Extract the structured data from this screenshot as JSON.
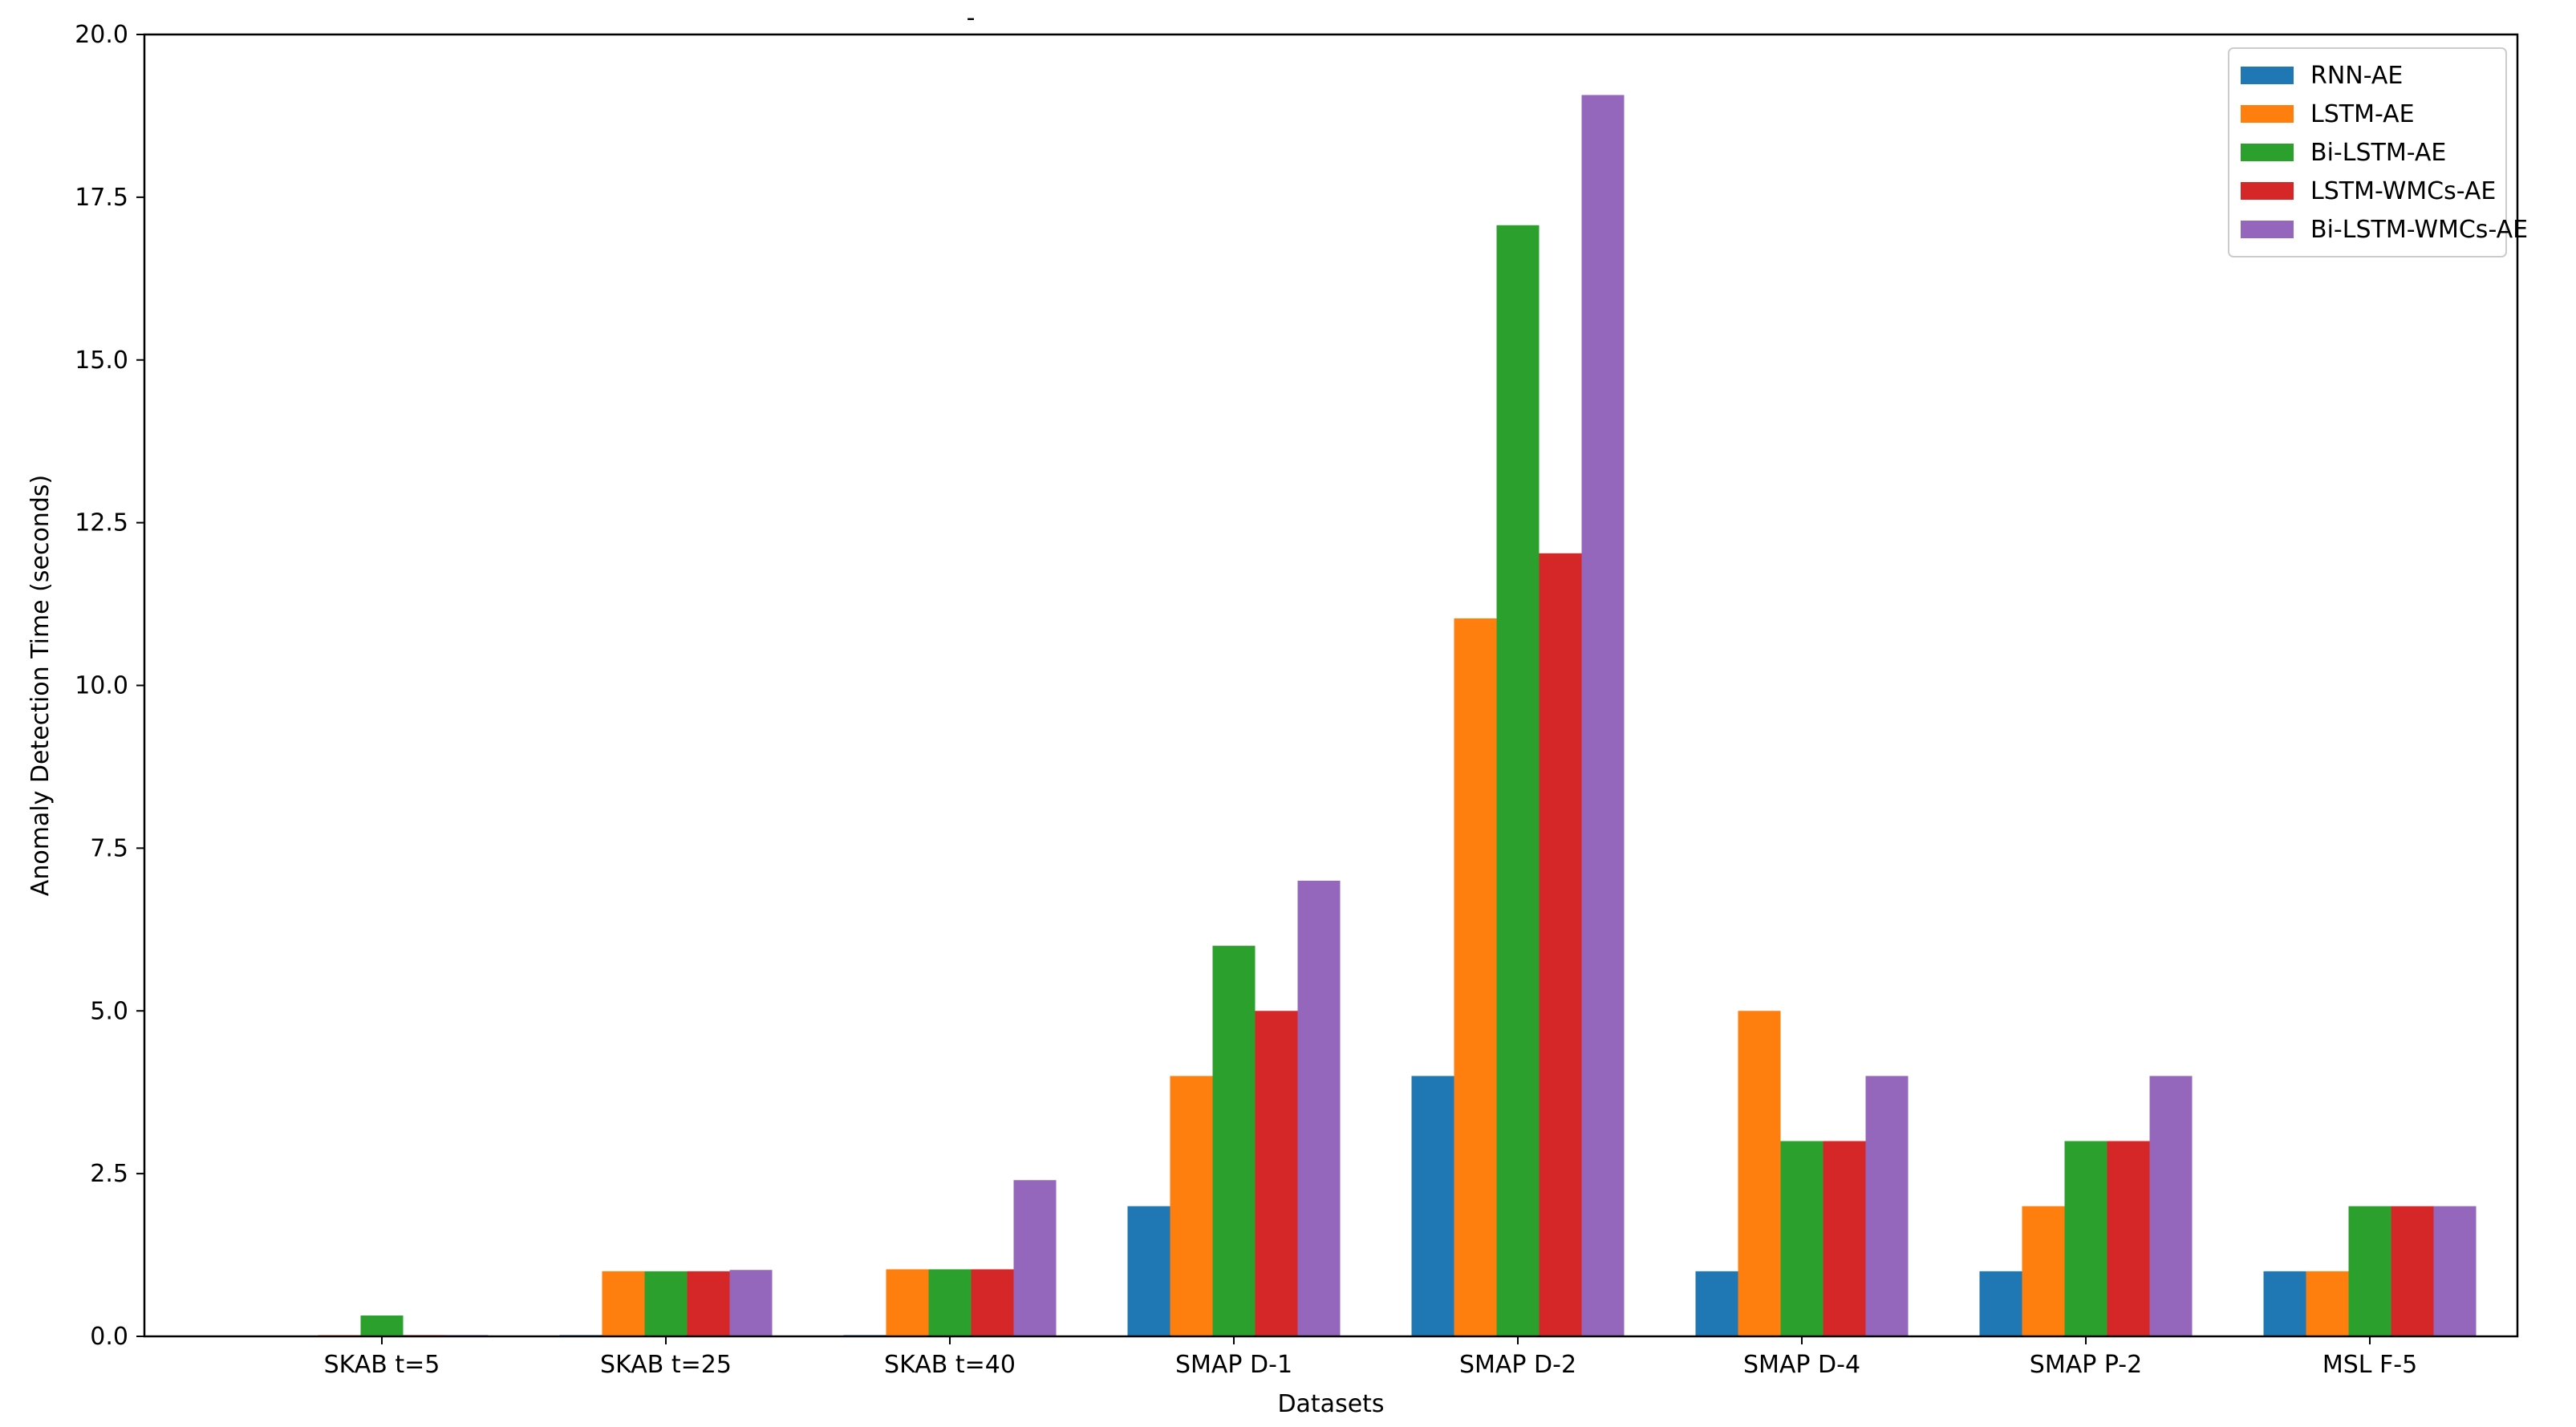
{
  "chart_data": {
    "type": "bar",
    "title": "",
    "title_mark": "-",
    "xlabel": "Datasets",
    "ylabel": "Anomaly Detection Time (seconds)",
    "ylim": [
      0,
      20
    ],
    "yticks": [
      0.0,
      2.5,
      5.0,
      7.5,
      10.0,
      12.5,
      15.0,
      17.5,
      20.0
    ],
    "ytick_labels": [
      "0.0",
      "2.5",
      "5.0",
      "7.5",
      "10.0",
      "12.5",
      "15.0",
      "17.5",
      "20.0"
    ],
    "grid": false,
    "legend_position": "top-right",
    "categories": [
      "SKAB t=5",
      "SKAB t=25",
      "SKAB t=40",
      "SMAP D-1",
      "SMAP D-2",
      "SMAP D-4",
      "SMAP P-2",
      "MSL F-5"
    ],
    "series": [
      {
        "name": "RNN-AE",
        "color": "#1f77b4",
        "values": [
          0.0,
          0.02,
          0.02,
          2.0,
          4.0,
          1.0,
          1.0,
          1.0
        ]
      },
      {
        "name": "LSTM-AE",
        "color": "#ff7f0e",
        "values": [
          0.02,
          1.0,
          1.03,
          4.0,
          11.03,
          5.0,
          2.0,
          1.0
        ]
      },
      {
        "name": "Bi-LSTM-AE",
        "color": "#2ca02c",
        "values": [
          0.32,
          1.0,
          1.03,
          6.0,
          17.07,
          3.0,
          3.0,
          2.0
        ]
      },
      {
        "name": "LSTM-WMCs-AE",
        "color": "#d62728",
        "values": [
          0.02,
          1.0,
          1.03,
          5.0,
          12.03,
          3.0,
          3.0,
          2.0
        ]
      },
      {
        "name": "Bi-LSTM-WMCs-AE",
        "color": "#9467bd",
        "values": [
          0.02,
          1.02,
          2.4,
          7.0,
          19.07,
          4.0,
          4.0,
          2.0
        ]
      }
    ]
  }
}
